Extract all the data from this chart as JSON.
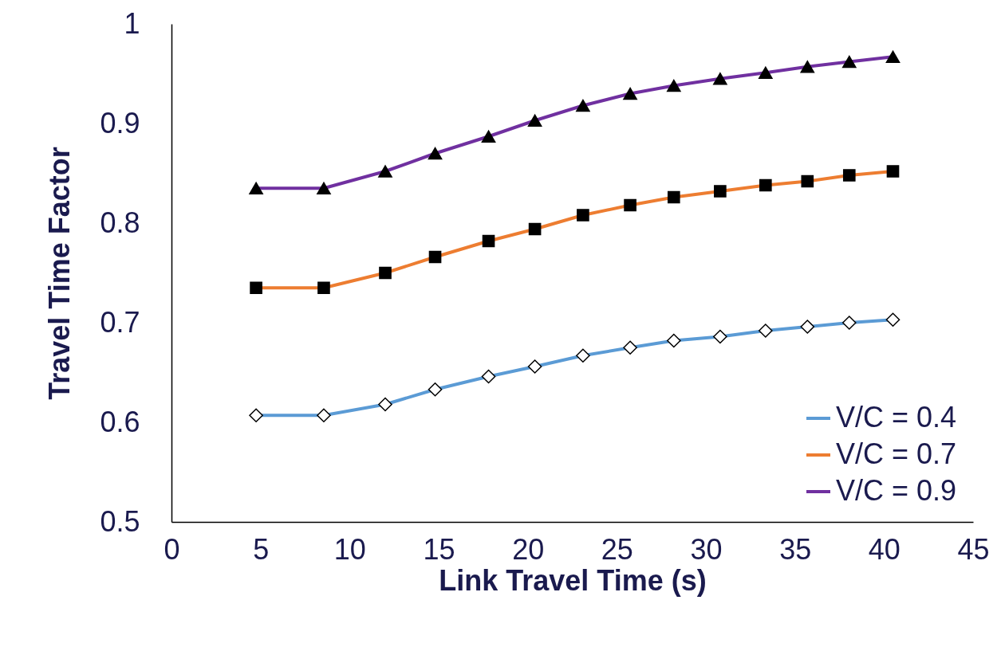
{
  "chart_data": {
    "type": "line",
    "xlabel": "Link Travel Time (s)",
    "ylabel": "Travel Time Factor",
    "x": [
      4.75,
      8.55,
      12,
      14.8,
      17.8,
      20.4,
      23.1,
      25.75,
      28.2,
      30.8,
      33.35,
      35.7,
      38.05,
      40.5
    ],
    "series": [
      {
        "name": "V/C = 0.4",
        "color": "#5b9bd5",
        "marker": "diamond",
        "values": [
          0.607,
          0.607,
          0.618,
          0.633,
          0.646,
          0.656,
          0.667,
          0.675,
          0.682,
          0.686,
          0.692,
          0.696,
          0.7,
          0.703
        ]
      },
      {
        "name": "V/C = 0.7",
        "color": "#ed7d31",
        "marker": "square",
        "values": [
          0.735,
          0.735,
          0.75,
          0.766,
          0.782,
          0.794,
          0.808,
          0.818,
          0.826,
          0.832,
          0.838,
          0.842,
          0.848,
          0.852
        ]
      },
      {
        "name": "V/C = 0.9",
        "color": "#7030a0",
        "marker": "triangle",
        "values": [
          0.835,
          0.835,
          0.852,
          0.87,
          0.887,
          0.903,
          0.918,
          0.93,
          0.938,
          0.945,
          0.951,
          0.957,
          0.962,
          0.967
        ]
      }
    ],
    "xlim": [
      0,
      45
    ],
    "xticks": [
      0,
      5,
      10,
      15,
      20,
      25,
      30,
      35,
      40,
      45
    ],
    "ylim": [
      0.5,
      1
    ],
    "yticks": [
      0.5,
      0.6,
      0.7,
      0.8,
      0.9,
      1
    ],
    "grid": false,
    "legend": "bottom right"
  }
}
